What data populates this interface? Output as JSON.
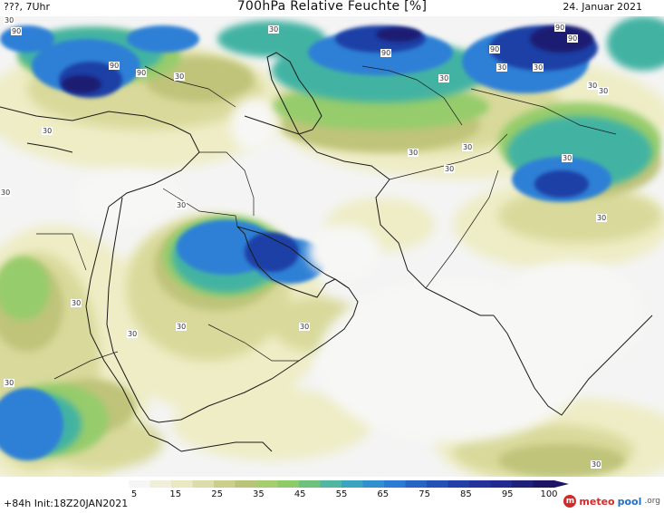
{
  "header": {
    "location": "???, 7Uhr",
    "title": "700hPa Relative Feuchte [%]",
    "date": "24. Januar 2021"
  },
  "footer": {
    "lead_time": "+84h",
    "init": "Init:18Z20JAN2021"
  },
  "legend": {
    "ticks": [
      "5",
      "15",
      "25",
      "35",
      "45",
      "55",
      "65",
      "75",
      "85",
      "95",
      "100"
    ]
  },
  "logo": {
    "meteo": "meteo",
    "pool": "pool",
    "org": ".org"
  },
  "contour_labels": [
    "30",
    "90",
    "90",
    "90",
    "90",
    "90",
    "90",
    "30",
    "90",
    "30",
    "30",
    "30",
    "30",
    "30",
    "30",
    "30",
    "30",
    "30",
    "30",
    "30",
    "30",
    "30",
    "30",
    "30",
    "30",
    "30",
    "30",
    "30",
    "30"
  ],
  "colors": {
    "very_dry": "#f4f4f4",
    "dry": "#fbfbf0",
    "khaki_light": "#eeedc6",
    "khaki": "#d8d99a",
    "olive": "#bfc47a",
    "green": "#96cc6c",
    "teal": "#43b3a3",
    "blue": "#2f80d6",
    "dark_blue": "#1f3fa6",
    "navy": "#1e1f72"
  }
}
